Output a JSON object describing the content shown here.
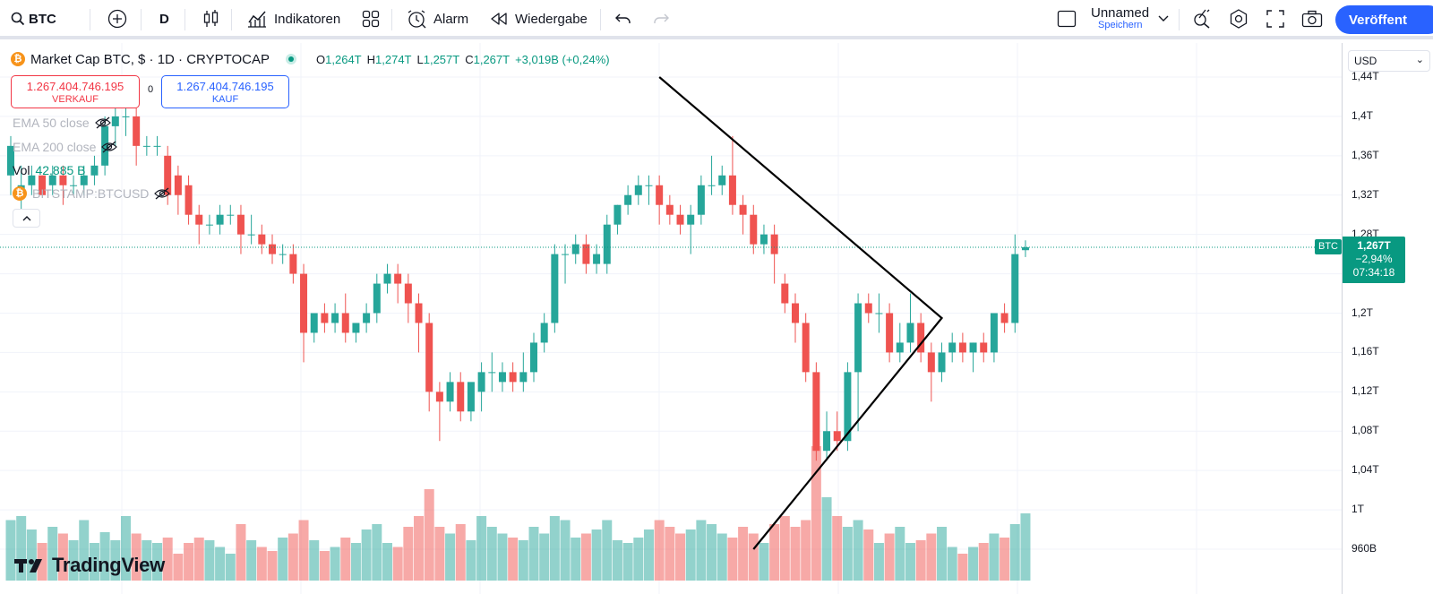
{
  "toolbar": {
    "symbol": "BTC",
    "interval": "D",
    "indicators_label": "Indikatoren",
    "alarm_label": "Alarm",
    "replay_label": "Wiedergabe",
    "layout_name": "Unnamed",
    "layout_save": "Speichern",
    "publish_label": "Veröffent"
  },
  "legend": {
    "title": "Market Cap BTC, $ · 1D · CRYPTOCAP",
    "ohlc": {
      "o_key": "O",
      "o_val": "1,264T",
      "h_key": "H",
      "h_val": "1,274T",
      "l_key": "L",
      "l_val": "1,257T",
      "c_key": "C",
      "c_val": "1,267T",
      "change": "+3,019B (+0,24%)"
    },
    "sell_value": "1.267.404.746.195",
    "sell_label": "VERKAUF",
    "spread": "0",
    "buy_value": "1.267.404.746.195",
    "buy_label": "KAUF",
    "indicators": {
      "ema50": "EMA 50 close",
      "ema200": "EMA 200 close",
      "vol_label": "Vol",
      "vol_value": "42,885 B",
      "bitstamp": "BITSTAMP:BTCUSD"
    }
  },
  "price_axis": {
    "currency": "USD",
    "ticks": [
      "1,44T",
      "1,4T",
      "1,36T",
      "1,32T",
      "1,28T",
      "1,2T",
      "1,16T",
      "1,12T",
      "1,08T",
      "1,04T",
      "1T",
      "960B"
    ],
    "last_price": "1,267T",
    "last_change": "−2,94%",
    "countdown": "07:34:18",
    "symbol_badge": "BTC"
  },
  "brand": {
    "name": "TradingView"
  },
  "colors": {
    "up": "#26a69a",
    "down": "#ef5350",
    "accent": "#2962ff",
    "badge": "#089981"
  },
  "chart_data": {
    "type": "candlestick",
    "price_scale": {
      "top": 1440000000000.0,
      "bottom": 960000000000.0
    },
    "candles": [
      [
        1340000000000.0,
        1380000000000.0,
        1370000000000.0,
        1320000000000.0
      ],
      [
        1320000000000.0,
        1350000000000.0,
        1330000000000.0,
        1300000000000.0
      ],
      [
        1330000000000.0,
        1350000000000.0,
        1340000000000.0,
        1320000000000.0
      ],
      [
        1340000000000.0,
        1340000000000.0,
        1320000000000.0,
        1320000000000.0
      ],
      [
        1330000000000.0,
        1350000000000.0,
        1340000000000.0,
        1320000000000.0
      ],
      [
        1340000000000.0,
        1350000000000.0,
        1330000000000.0,
        1310000000000.0
      ],
      [
        1330000000000.0,
        1340000000000.0,
        1330000000000.0,
        1320000000000.0
      ],
      [
        1330000000000.0,
        1350000000000.0,
        1340000000000.0,
        1320000000000.0
      ],
      [
        1340000000000.0,
        1360000000000.0,
        1350000000000.0,
        1330000000000.0
      ],
      [
        1350000000000.0,
        1400000000000.0,
        1390000000000.0,
        1340000000000.0
      ],
      [
        1390000000000.0,
        1410000000000.0,
        1400000000000.0,
        1370000000000.0
      ],
      [
        1400000000000.0,
        1420000000000.0,
        1400000000000.0,
        1380000000000.0
      ],
      [
        1400000000000.0,
        1410000000000.0,
        1370000000000.0,
        1350000000000.0
      ],
      [
        1370000000000.0,
        1380000000000.0,
        1370000000000.0,
        1360000000000.0
      ],
      [
        1370000000000.0,
        1380000000000.0,
        1370000000000.0,
        1360000000000.0
      ],
      [
        1360000000000.0,
        1370000000000.0,
        1320000000000.0,
        1310000000000.0
      ],
      [
        1340000000000.0,
        1350000000000.0,
        1320000000000.0,
        1300000000000.0
      ],
      [
        1330000000000.0,
        1340000000000.0,
        1300000000000.0,
        1290000000000.0
      ],
      [
        1300000000000.0,
        1310000000000.0,
        1290000000000.0,
        1270000000000.0
      ],
      [
        1290000000000.0,
        1300000000000.0,
        1290000000000.0,
        1280000000000.0
      ],
      [
        1290000000000.0,
        1310000000000.0,
        1300000000000.0,
        1280000000000.0
      ],
      [
        1300000000000.0,
        1310000000000.0,
        1300000000000.0,
        1290000000000.0
      ],
      [
        1300000000000.0,
        1310000000000.0,
        1280000000000.0,
        1260000000000.0
      ],
      [
        1280000000000.0,
        1300000000000.0,
        1280000000000.0,
        1270000000000.0
      ],
      [
        1280000000000.0,
        1290000000000.0,
        1270000000000.0,
        1260000000000.0
      ],
      [
        1270000000000.0,
        1280000000000.0,
        1260000000000.0,
        1250000000000.0
      ],
      [
        1260000000000.0,
        1270000000000.0,
        1260000000000.0,
        1250000000000.0
      ],
      [
        1260000000000.0,
        1270000000000.0,
        1240000000000.0,
        1230000000000.0
      ],
      [
        1240000000000.0,
        1250000000000.0,
        1180000000000.0,
        1150000000000.0
      ],
      [
        1180000000000.0,
        1200000000000.0,
        1200000000000.0,
        1170000000000.0
      ],
      [
        1200000000000.0,
        1210000000000.0,
        1190000000000.0,
        1180000000000.0
      ],
      [
        1190000000000.0,
        1210000000000.0,
        1200000000000.0,
        1180000000000.0
      ],
      [
        1200000000000.0,
        1220000000000.0,
        1180000000000.0,
        1170000000000.0
      ],
      [
        1180000000000.0,
        1190000000000.0,
        1190000000000.0,
        1170000000000.0
      ],
      [
        1190000000000.0,
        1210000000000.0,
        1200000000000.0,
        1180000000000.0
      ],
      [
        1200000000000.0,
        1240000000000.0,
        1230000000000.0,
        1190000000000.0
      ],
      [
        1230000000000.0,
        1250000000000.0,
        1240000000000.0,
        1220000000000.0
      ],
      [
        1240000000000.0,
        1250000000000.0,
        1230000000000.0,
        1210000000000.0
      ],
      [
        1230000000000.0,
        1240000000000.0,
        1210000000000.0,
        1190000000000.0
      ],
      [
        1210000000000.0,
        1220000000000.0,
        1190000000000.0,
        1160000000000.0
      ],
      [
        1190000000000.0,
        1200000000000.0,
        1120000000000.0,
        1100000000000.0
      ],
      [
        1120000000000.0,
        1130000000000.0,
        1110000000000.0,
        1070000000000.0
      ],
      [
        1110000000000.0,
        1140000000000.0,
        1130000000000.0,
        1100000000000.0
      ],
      [
        1130000000000.0,
        1140000000000.0,
        1100000000000.0,
        1090000000000.0
      ],
      [
        1100000000000.0,
        1120000000000.0,
        1130000000000.0,
        1090000000000.0
      ],
      [
        1120000000000.0,
        1150000000000.0,
        1140000000000.0,
        1100000000000.0
      ],
      [
        1140000000000.0,
        1160000000000.0,
        1140000000000.0,
        1120000000000.0
      ],
      [
        1130000000000.0,
        1150000000000.0,
        1140000000000.0,
        1120000000000.0
      ],
      [
        1140000000000.0,
        1150000000000.0,
        1130000000000.0,
        1120000000000.0
      ],
      [
        1130000000000.0,
        1160000000000.0,
        1140000000000.0,
        1120000000000.0
      ],
      [
        1140000000000.0,
        1180000000000.0,
        1170000000000.0,
        1130000000000.0
      ],
      [
        1170000000000.0,
        1200000000000.0,
        1190000000000.0,
        1160000000000.0
      ],
      [
        1190000000000.0,
        1270000000000.0,
        1260000000000.0,
        1180000000000.0
      ],
      [
        1260000000000.0,
        1270000000000.0,
        1260000000000.0,
        1230000000000.0
      ],
      [
        1260000000000.0,
        1280000000000.0,
        1270000000000.0,
        1250000000000.0
      ],
      [
        1270000000000.0,
        1280000000000.0,
        1250000000000.0,
        1240000000000.0
      ],
      [
        1250000000000.0,
        1270000000000.0,
        1260000000000.0,
        1240000000000.0
      ],
      [
        1250000000000.0,
        1300000000000.0,
        1290000000000.0,
        1240000000000.0
      ],
      [
        1290000000000.0,
        1310000000000.0,
        1310000000000.0,
        1280000000000.0
      ],
      [
        1310000000000.0,
        1330000000000.0,
        1320000000000.0,
        1300000000000.0
      ],
      [
        1320000000000.0,
        1340000000000.0,
        1330000000000.0,
        1310000000000.0
      ],
      [
        1330000000000.0,
        1340000000000.0,
        1330000000000.0,
        1310000000000.0
      ],
      [
        1330000000000.0,
        1340000000000.0,
        1310000000000.0,
        1290000000000.0
      ],
      [
        1310000000000.0,
        1320000000000.0,
        1300000000000.0,
        1290000000000.0
      ],
      [
        1300000000000.0,
        1310000000000.0,
        1290000000000.0,
        1280000000000.0
      ],
      [
        1290000000000.0,
        1310000000000.0,
        1300000000000.0,
        1260000000000.0
      ],
      [
        1300000000000.0,
        1340000000000.0,
        1330000000000.0,
        1290000000000.0
      ],
      [
        1330000000000.0,
        1360000000000.0,
        1330000000000.0,
        1320000000000.0
      ],
      [
        1330000000000.0,
        1350000000000.0,
        1340000000000.0,
        1320000000000.0
      ],
      [
        1340000000000.0,
        1380000000000.0,
        1310000000000.0,
        1300000000000.0
      ],
      [
        1310000000000.0,
        1320000000000.0,
        1300000000000.0,
        1280000000000.0
      ],
      [
        1300000000000.0,
        1310000000000.0,
        1270000000000.0,
        1260000000000.0
      ],
      [
        1270000000000.0,
        1290000000000.0,
        1280000000000.0,
        1260000000000.0
      ],
      [
        1280000000000.0,
        1290000000000.0,
        1260000000000.0,
        1230000000000.0
      ],
      [
        1230000000000.0,
        1240000000000.0,
        1210000000000.0,
        1200000000000.0
      ],
      [
        1210000000000.0,
        1220000000000.0,
        1190000000000.0,
        1170000000000.0
      ],
      [
        1190000000000.0,
        1200000000000.0,
        1140000000000.0,
        1130000000000.0
      ],
      [
        1140000000000.0,
        1150000000000.0,
        1060000000000.0,
        1050000000000.0
      ],
      [
        1060000000000.0,
        1100000000000.0,
        1080000000000.0,
        1050000000000.0
      ],
      [
        1080000000000.0,
        1100000000000.0,
        1070000000000.0,
        1060000000000.0
      ],
      [
        1070000000000.0,
        1150000000000.0,
        1140000000000.0,
        1060000000000.0
      ],
      [
        1140000000000.0,
        1220000000000.0,
        1210000000000.0,
        1080000000000.0
      ],
      [
        1210000000000.0,
        1220000000000.0,
        1200000000000.0,
        1190000000000.0
      ],
      [
        1200000000000.0,
        1220000000000.0,
        1200000000000.0,
        1180000000000.0
      ],
      [
        1200000000000.0,
        1210000000000.0,
        1160000000000.0,
        1150000000000.0
      ],
      [
        1160000000000.0,
        1190000000000.0,
        1170000000000.0,
        1150000000000.0
      ],
      [
        1170000000000.0,
        1220000000000.0,
        1190000000000.0,
        1160000000000.0
      ],
      [
        1190000000000.0,
        1200000000000.0,
        1160000000000.0,
        1150000000000.0
      ],
      [
        1160000000000.0,
        1170000000000.0,
        1140000000000.0,
        1110000000000.0
      ],
      [
        1140000000000.0,
        1170000000000.0,
        1160000000000.0,
        1130000000000.0
      ],
      [
        1160000000000.0,
        1180000000000.0,
        1170000000000.0,
        1150000000000.0
      ],
      [
        1170000000000.0,
        1180000000000.0,
        1160000000000.0,
        1150000000000.0
      ],
      [
        1160000000000.0,
        1170000000000.0,
        1170000000000.0,
        1140000000000.0
      ],
      [
        1170000000000.0,
        1180000000000.0,
        1160000000000.0,
        1150000000000.0
      ],
      [
        1160000000000.0,
        1200000000000.0,
        1200000000000.0,
        1150000000000.0
      ],
      [
        1200000000000.0,
        1210000000000.0,
        1190000000000.0,
        1180000000000.0
      ],
      [
        1190000000000.0,
        1280000000000.0,
        1260000000000.0,
        1180000000000.0
      ],
      [
        1264000000000.0,
        1274000000000.0,
        1267000000000.0,
        1257000000000.0
      ]
    ],
    "volume_scale": 1.0,
    "volumes": [
      0.45,
      0.48,
      0.38,
      0.28,
      0.4,
      0.35,
      0.3,
      0.45,
      0.28,
      0.36,
      0.3,
      0.48,
      0.35,
      0.3,
      0.28,
      0.32,
      0.2,
      0.28,
      0.32,
      0.3,
      0.25,
      0.2,
      0.42,
      0.3,
      0.25,
      0.22,
      0.32,
      0.35,
      0.45,
      0.3,
      0.22,
      0.25,
      0.32,
      0.28,
      0.38,
      0.42,
      0.28,
      0.25,
      0.4,
      0.48,
      0.68,
      0.4,
      0.35,
      0.42,
      0.3,
      0.48,
      0.4,
      0.35,
      0.32,
      0.3,
      0.4,
      0.35,
      0.48,
      0.45,
      0.32,
      0.35,
      0.38,
      0.45,
      0.3,
      0.28,
      0.32,
      0.38,
      0.45,
      0.4,
      0.35,
      0.38,
      0.45,
      0.42,
      0.35,
      0.32,
      0.4,
      0.35,
      0.28,
      0.42,
      0.48,
      0.4,
      0.45,
      1.0,
      0.62,
      0.48,
      0.4,
      0.45,
      0.38,
      0.28,
      0.35,
      0.4,
      0.28,
      0.3,
      0.35,
      0.4,
      0.25,
      0.2,
      0.25,
      0.28,
      0.35,
      0.32,
      0.42,
      0.5
    ],
    "drawing": {
      "type": "triangle-pattern",
      "points": [
        {
          "bar": 62,
          "price": 1440000000000.0
        },
        {
          "bar": 89,
          "price": 1195000000000.0
        },
        {
          "bar": 71,
          "price": 960000000000.0
        }
      ]
    },
    "last_price": 1267000000000.0
  }
}
